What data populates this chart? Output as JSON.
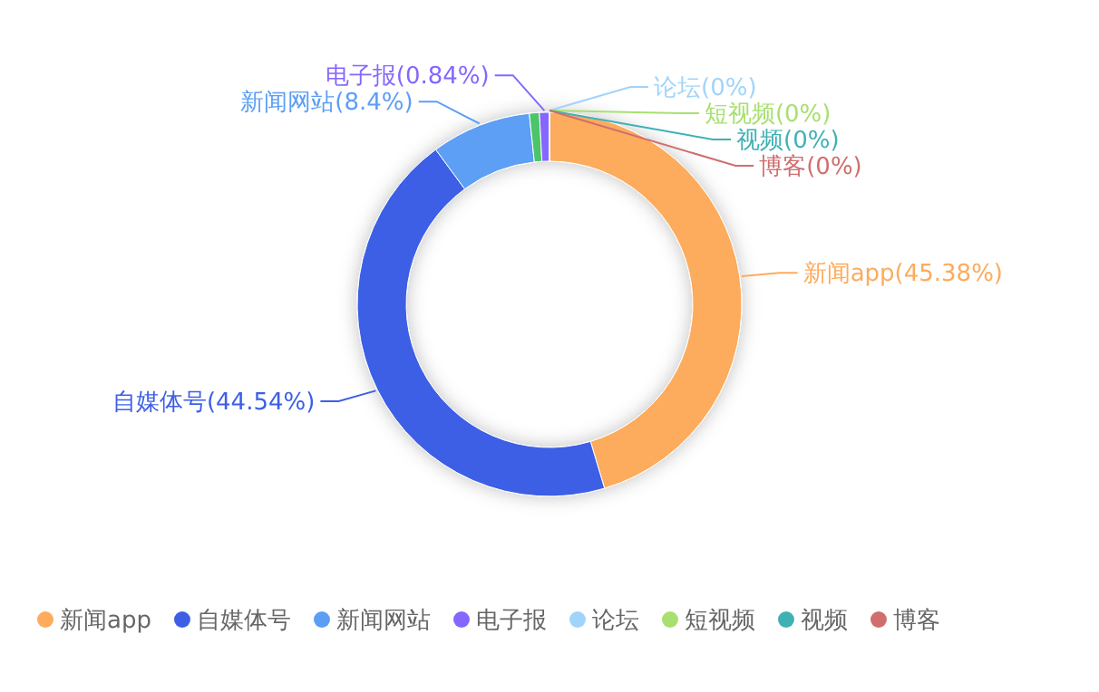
{
  "chart_data": {
    "type": "donut",
    "categories": [
      "新闻app",
      "自媒体号",
      "新闻网站",
      null,
      "电子报",
      null,
      "论坛",
      "短视频",
      "视频",
      "博客"
    ],
    "values": [
      45.38,
      44.54,
      8.4,
      0.84,
      0.84,
      0,
      0,
      0,
      0,
      0
    ],
    "colors": [
      "#fdab5c",
      "#3d5fe6",
      "#5b9ff5",
      "#4cc46a",
      "#8566ff",
      "#f4605a",
      "#a0d4fa",
      "#a8e070",
      "#3fb1b5",
      "#d06e6e"
    ],
    "value_labels": [
      "新闻app(45.38%)",
      "自媒体号(44.54%)",
      "新闻网站(8.4%)",
      null,
      "电子报(0.84%)",
      null,
      "论坛(0%)",
      "短视频(0%)",
      "视频(0%)",
      "博客(0%)"
    ],
    "legend": "bottom"
  }
}
